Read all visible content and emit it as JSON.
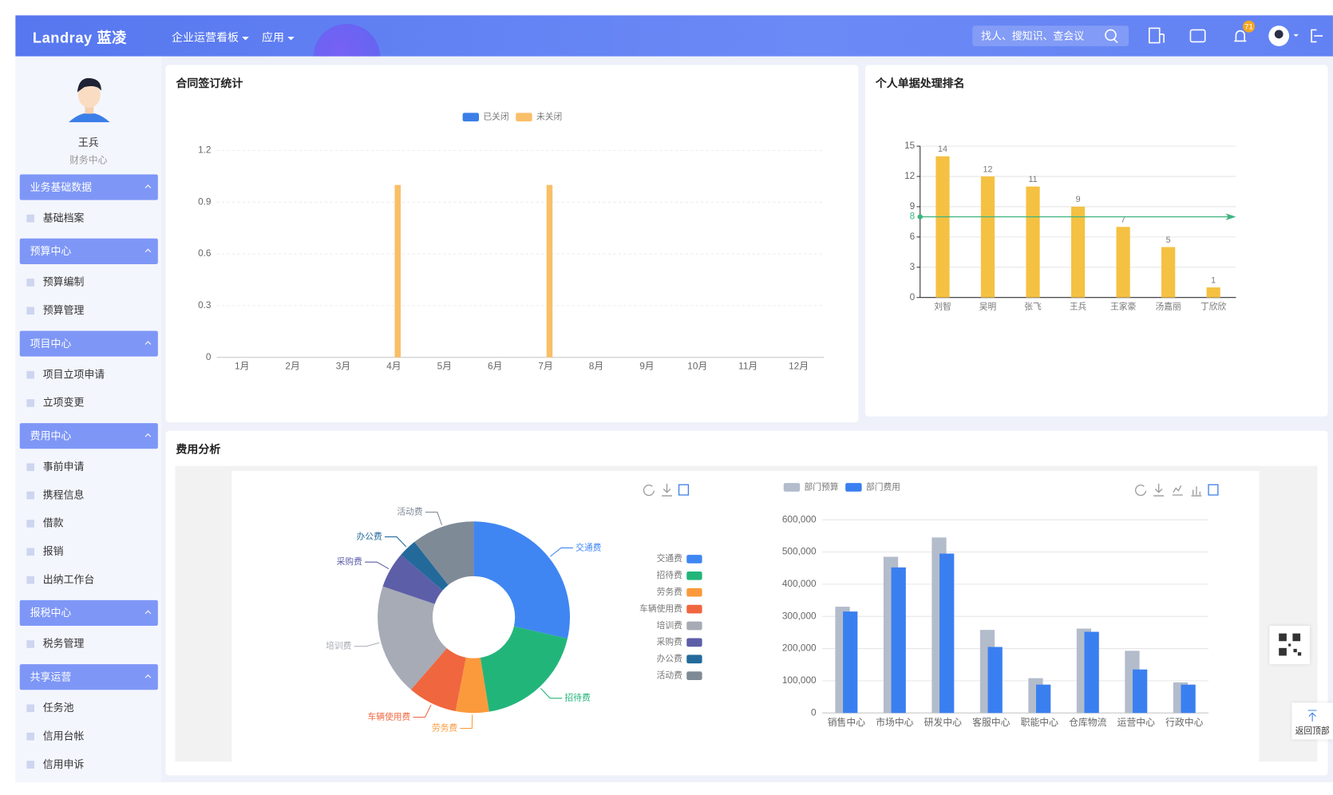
{
  "header": {
    "logo": "Landray 蓝凌",
    "nav": [
      "企业运营看板",
      "应用"
    ],
    "search_placeholder": "找人、搜知识、查会议",
    "badge": 71
  },
  "sidebar": {
    "user": "王兵",
    "department": "财务中心",
    "groups": [
      {
        "title": "业务基础数据",
        "items": [
          "基础档案"
        ]
      },
      {
        "title": "预算中心",
        "items": [
          "预算编制",
          "预算管理"
        ]
      },
      {
        "title": "项目中心",
        "items": [
          "项目立项申请",
          "立项变更"
        ]
      },
      {
        "title": "费用中心",
        "items": [
          "事前申请",
          "携程信息",
          "借款",
          "报销",
          "出纳工作台"
        ]
      },
      {
        "title": "报税中心",
        "items": [
          "税务管理"
        ]
      },
      {
        "title": "共享运营",
        "items": [
          "任务池",
          "信用台帐",
          "信用申诉"
        ]
      }
    ]
  },
  "float": {
    "back_top": "返回顶部"
  },
  "chart_data": [
    {
      "type": "bar",
      "title": "合同签订统计",
      "categories": [
        "1月",
        "2月",
        "3月",
        "4月",
        "5月",
        "6月",
        "7月",
        "8月",
        "9月",
        "10月",
        "11月",
        "12月"
      ],
      "series": [
        {
          "name": "已关闭",
          "color": "#3b7ee8",
          "values": [
            0,
            0,
            0,
            0,
            0,
            0,
            0,
            0,
            0,
            0,
            0,
            0
          ]
        },
        {
          "name": "未关闭",
          "color": "#f9bf68",
          "values": [
            0,
            0,
            0,
            1,
            0,
            0,
            1,
            0,
            0,
            0,
            0,
            0
          ]
        }
      ],
      "ylim": [
        0,
        1.2
      ],
      "yticks": [
        0,
        0.3,
        0.6,
        0.9,
        1.2
      ],
      "grid": true,
      "legend": "top"
    },
    {
      "type": "bar",
      "title": "个人单据处理排名",
      "categories": [
        "刘智",
        "吴明",
        "张飞",
        "王兵",
        "王家豪",
        "汤嘉丽",
        "丁欣欣"
      ],
      "values": [
        14,
        12,
        11,
        9,
        7,
        5,
        1
      ],
      "color": "#f5c142",
      "show_values": true,
      "ylim": [
        0,
        15
      ],
      "yticks": [
        0,
        3,
        6,
        9,
        12,
        15
      ],
      "grid": true,
      "markline": {
        "value": 8,
        "color": "#3db37f"
      }
    },
    {
      "type": "pie",
      "title": "费用分析",
      "categories": [
        "交通费",
        "招待费",
        "劳务费",
        "车辆使用费",
        "培训费",
        "采购费",
        "办公费",
        "活动费"
      ],
      "values": [
        28.6,
        18.9,
        5.6,
        8.3,
        18.9,
        6.1,
        3.1,
        10.6
      ],
      "colors": [
        "#3f86f2",
        "#22b57a",
        "#fb9a3c",
        "#f0663f",
        "#a7abb5",
        "#5d5ea8",
        "#236a9b",
        "#7f8a97"
      ],
      "donut": true,
      "legend": "right"
    },
    {
      "type": "bar",
      "categories": [
        "销售中心",
        "市场中心",
        "研发中心",
        "客服中心",
        "职能中心",
        "仓库物流",
        "运营中心",
        "行政中心"
      ],
      "series": [
        {
          "name": "部门预算",
          "color": "#b3bccb",
          "values": [
            330000,
            485000,
            545000,
            258000,
            108000,
            262000,
            193000,
            95000
          ]
        },
        {
          "name": "部门费用",
          "color": "#3a7ff0",
          "values": [
            315000,
            452000,
            495000,
            205000,
            88000,
            252000,
            135000,
            88000
          ]
        }
      ],
      "ylim": [
        0,
        600000
      ],
      "yticks": [
        0,
        {
          "value": 100000,
          "label": "100,000"
        },
        {
          "value": 200000,
          "label": "200,000"
        },
        {
          "value": 300000,
          "label": "300,000"
        },
        {
          "value": 400000,
          "label": "400,000"
        },
        {
          "value": 500000,
          "label": "500,000"
        },
        {
          "value": 600000,
          "label": "600,000"
        }
      ],
      "grid": true,
      "legend": "top"
    }
  ]
}
